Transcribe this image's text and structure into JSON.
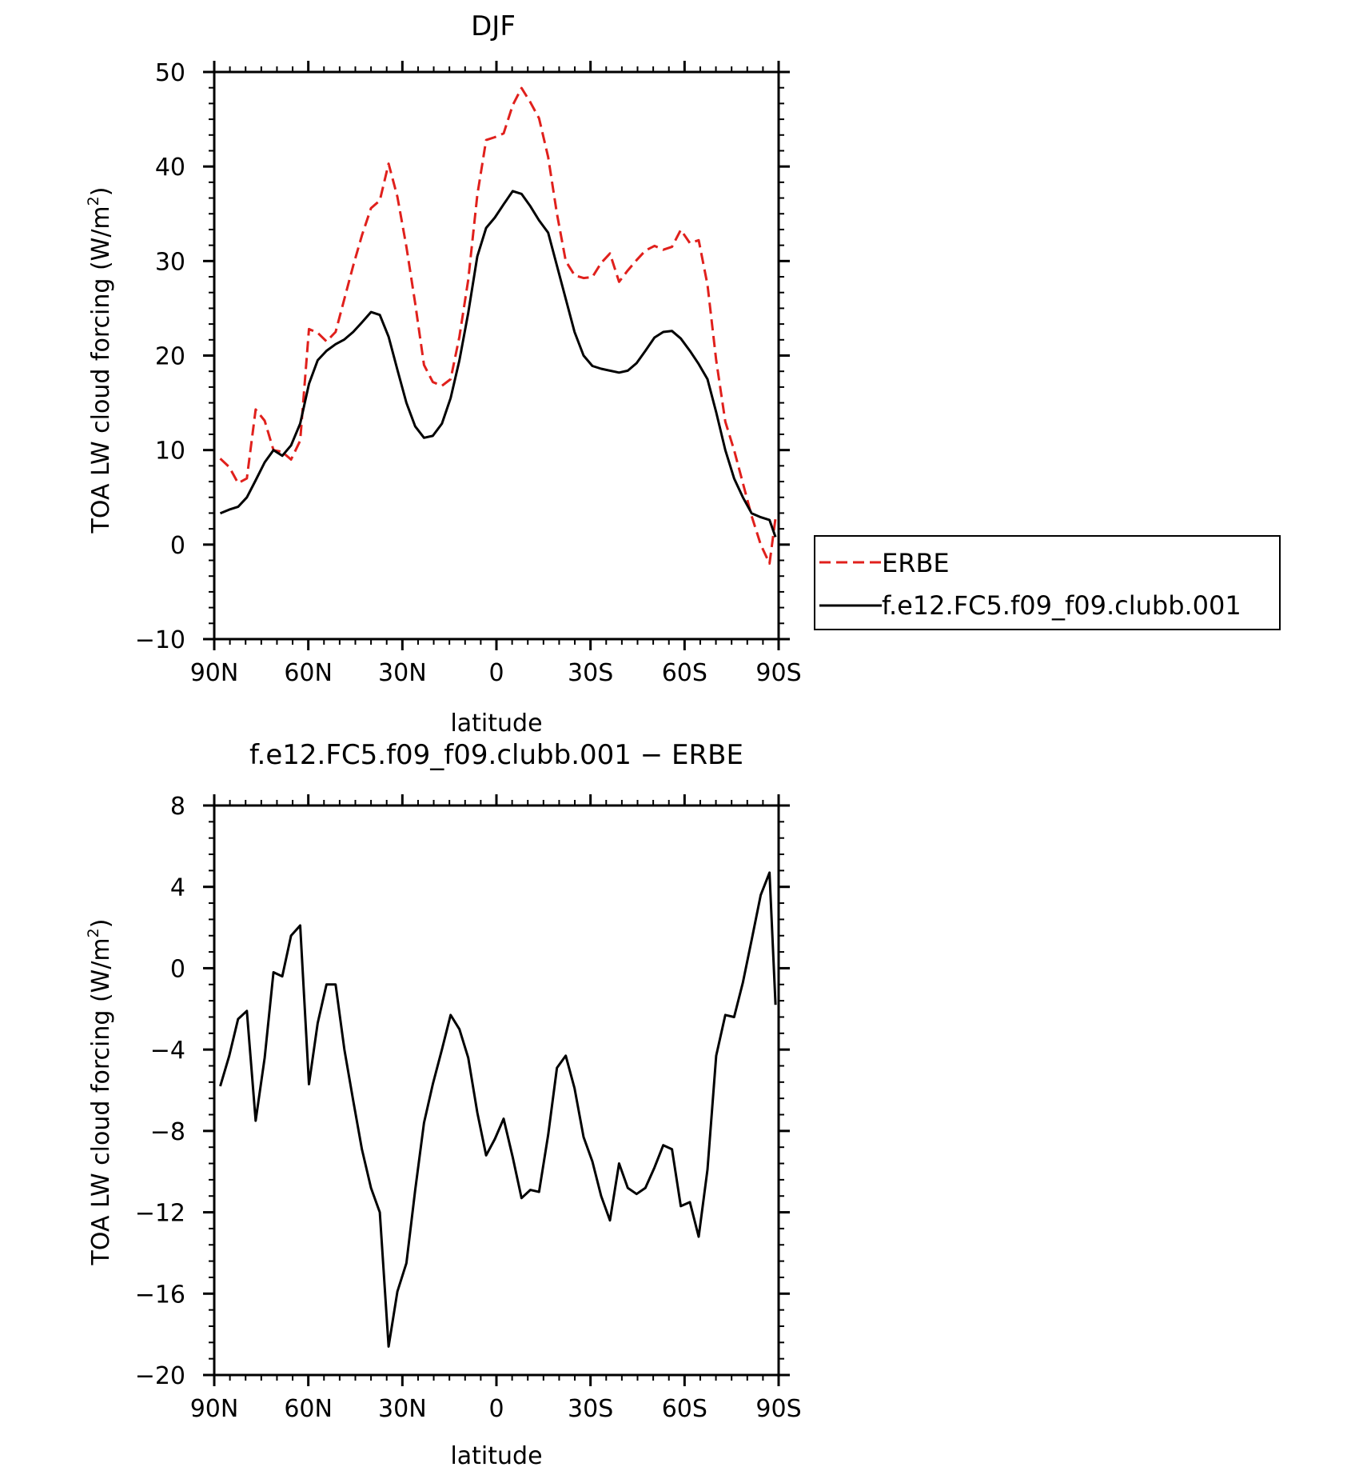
{
  "chart_data": [
    {
      "type": "line",
      "title": "DJF",
      "xlabel": "latitude",
      "ylabel": "TOA LW cloud forcing (W/m²)",
      "ylabel_parts": [
        "TOA LW cloud forcing (W/m",
        "2",
        ")"
      ],
      "xlim": [
        90,
        -90
      ],
      "ylim": [
        -10,
        50
      ],
      "xticks": [
        90,
        60,
        30,
        0,
        -30,
        -60,
        -90
      ],
      "xticklabels": [
        "90N",
        "60N",
        "30N",
        "0",
        "30S",
        "60S",
        "90S"
      ],
      "yticks": [
        -10,
        0,
        10,
        20,
        30,
        40,
        50
      ],
      "yticklabels": [
        "−10",
        "0",
        "10",
        "20",
        "30",
        "40",
        "50"
      ],
      "legend_position": "right",
      "series": [
        {
          "name": "ERBE",
          "color": "#e0201c",
          "dash": "dashed",
          "x": [
            88.1,
            85.2,
            82.4,
            79.6,
            76.8,
            73.9,
            71.1,
            68.3,
            65.5,
            62.6,
            59.8,
            57.0,
            54.2,
            51.3,
            48.5,
            45.7,
            42.9,
            40.0,
            37.2,
            34.4,
            31.6,
            28.7,
            25.9,
            23.1,
            20.3,
            17.4,
            14.6,
            11.8,
            9.0,
            6.1,
            3.3,
            0.5,
            -2.3,
            -5.2,
            -8.0,
            -10.8,
            -13.6,
            -16.5,
            -19.3,
            -22.1,
            -24.9,
            -27.8,
            -30.6,
            -33.4,
            -36.2,
            -39.1,
            -41.9,
            -44.7,
            -47.5,
            -50.4,
            -53.2,
            -56.0,
            -58.8,
            -61.7,
            -64.5,
            -67.3,
            -70.1,
            -73.0,
            -75.8,
            -78.6,
            -81.4,
            -84.3,
            -87.1,
            -89.0
          ],
          "y": [
            9.1,
            8.2,
            6.5,
            7.0,
            14.3,
            13.1,
            10.0,
            9.8,
            9.0,
            11.0,
            22.8,
            22.4,
            21.5,
            22.5,
            26.0,
            29.5,
            32.7,
            35.6,
            36.4,
            40.3,
            36.8,
            31.5,
            25.5,
            19.0,
            17.2,
            16.8,
            17.5,
            22.0,
            28.0,
            37.0,
            42.8,
            43.1,
            43.5,
            46.5,
            48.3,
            46.8,
            45.1,
            41.0,
            35.0,
            30.0,
            28.5,
            28.2,
            28.3,
            29.8,
            30.8,
            27.8,
            29.0,
            30.1,
            31.1,
            31.6,
            31.2,
            31.5,
            33.3,
            31.9,
            32.2,
            27.5,
            19.5,
            13.0,
            10.0,
            6.5,
            3.0,
            0.0,
            -2.0,
            2.8
          ]
        },
        {
          "name": "f.e12.FC5.f09_f09.clubb.001",
          "color": "#000000",
          "dash": "solid",
          "x": [
            88.1,
            85.2,
            82.4,
            79.6,
            76.8,
            73.9,
            71.1,
            68.3,
            65.5,
            62.6,
            59.8,
            57.0,
            54.2,
            51.3,
            48.5,
            45.7,
            42.9,
            40.0,
            37.2,
            34.4,
            31.6,
            28.7,
            25.9,
            23.1,
            20.3,
            17.4,
            14.6,
            11.8,
            9.0,
            6.1,
            3.3,
            0.5,
            -2.3,
            -5.2,
            -8.0,
            -10.8,
            -13.6,
            -16.5,
            -19.3,
            -22.1,
            -24.9,
            -27.8,
            -30.6,
            -33.4,
            -36.2,
            -39.1,
            -41.9,
            -44.7,
            -47.5,
            -50.4,
            -53.2,
            -56.0,
            -58.8,
            -61.7,
            -64.5,
            -67.3,
            -70.1,
            -73.0,
            -75.8,
            -78.6,
            -81.4,
            -84.3,
            -87.1,
            -89.0
          ],
          "y": [
            3.3,
            3.7,
            4.0,
            5.0,
            6.8,
            8.7,
            10.0,
            9.4,
            10.5,
            12.8,
            17.0,
            19.5,
            20.5,
            21.2,
            21.7,
            22.5,
            23.5,
            24.6,
            24.3,
            22.0,
            18.5,
            15.0,
            12.5,
            11.3,
            11.5,
            12.8,
            15.5,
            19.5,
            24.5,
            30.5,
            33.5,
            34.6,
            36.0,
            37.4,
            37.1,
            35.8,
            34.3,
            33.0,
            29.5,
            26.0,
            22.5,
            20.0,
            18.9,
            18.6,
            18.4,
            18.2,
            18.4,
            19.2,
            20.5,
            21.9,
            22.5,
            22.6,
            21.8,
            20.5,
            19.1,
            17.5,
            14.0,
            10.0,
            7.0,
            5.0,
            3.3,
            2.9,
            2.6,
            0.8
          ]
        }
      ]
    },
    {
      "type": "line",
      "title": "f.e12.FC5.f09_f09.clubb.001 − ERBE",
      "xlabel": "latitude",
      "ylabel": "TOA LW cloud forcing (W/m²)",
      "ylabel_parts": [
        "TOA LW cloud forcing (W/m",
        "2",
        ")"
      ],
      "xlim": [
        90,
        -90
      ],
      "ylim": [
        -20,
        8
      ],
      "xticks": [
        90,
        60,
        30,
        0,
        -30,
        -60,
        -90
      ],
      "xticklabels": [
        "90N",
        "60N",
        "30N",
        "0",
        "30S",
        "60S",
        "90S"
      ],
      "yticks": [
        -20,
        -16,
        -12,
        -8,
        -4,
        0,
        4,
        8
      ],
      "yticklabels": [
        "−20",
        "−16",
        "−12",
        "−8",
        "−4",
        "0",
        "4",
        "8"
      ],
      "series": [
        {
          "color": "#000000",
          "dash": "solid",
          "x": [
            88.1,
            85.2,
            82.4,
            79.6,
            76.8,
            73.9,
            71.1,
            68.3,
            65.5,
            62.6,
            59.8,
            57.0,
            54.2,
            51.3,
            48.5,
            45.7,
            42.9,
            40.0,
            37.2,
            34.4,
            31.6,
            28.7,
            25.9,
            23.1,
            20.3,
            17.4,
            14.6,
            11.8,
            9.0,
            6.1,
            3.3,
            0.5,
            -2.3,
            -5.2,
            -8.0,
            -10.8,
            -13.6,
            -16.5,
            -19.3,
            -22.1,
            -24.9,
            -27.8,
            -30.6,
            -33.4,
            -36.2,
            -39.1,
            -41.9,
            -44.7,
            -47.5,
            -50.4,
            -53.2,
            -56.0,
            -58.8,
            -61.7,
            -64.5,
            -67.3,
            -70.1,
            -73.0,
            -75.8,
            -78.6,
            -81.4,
            -84.3,
            -87.1,
            -89.0
          ],
          "y": [
            -5.8,
            -4.3,
            -2.5,
            -2.1,
            -7.5,
            -4.4,
            -0.2,
            -0.4,
            1.6,
            2.1,
            -5.7,
            -2.7,
            -0.8,
            -0.8,
            -4.0,
            -6.5,
            -8.9,
            -10.8,
            -12.0,
            -18.6,
            -15.9,
            -14.5,
            -10.9,
            -7.6,
            -5.7,
            -4.0,
            -2.3,
            -3.0,
            -4.4,
            -7.1,
            -9.2,
            -8.4,
            -7.4,
            -9.3,
            -11.3,
            -10.9,
            -11.0,
            -8.2,
            -4.9,
            -4.3,
            -5.9,
            -8.3,
            -9.5,
            -11.2,
            -12.4,
            -9.6,
            -10.8,
            -11.1,
            -10.8,
            -9.8,
            -8.7,
            -8.9,
            -11.7,
            -11.5,
            -13.2,
            -9.9,
            -4.3,
            -2.3,
            -2.4,
            -0.7,
            1.4,
            3.6,
            4.7,
            -1.8
          ]
        }
      ]
    }
  ]
}
